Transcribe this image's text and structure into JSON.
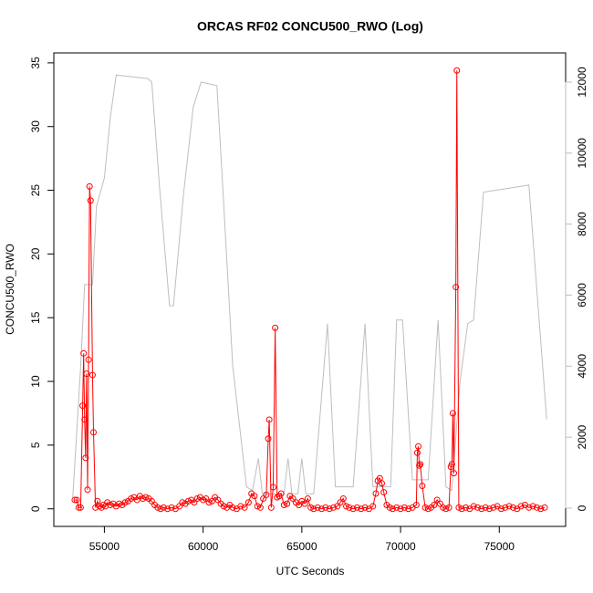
{
  "chart_data": {
    "type": "line",
    "title": "ORCAS RF02 CONCU500_RWO (Log)",
    "xlabel": "UTC Seconds",
    "ylabel": "CONCU500_RWO",
    "xlim": [
      52440,
      78360
    ],
    "ylim": [
      -1.38,
      35.78
    ],
    "y2lim": [
      -514,
      12822
    ],
    "xticks": [
      55000,
      60000,
      65000,
      70000,
      75000
    ],
    "yticks": [
      0,
      5,
      10,
      15,
      20,
      25,
      30,
      35
    ],
    "y2ticks": [
      0,
      2000,
      4000,
      6000,
      8000,
      10000,
      12000
    ],
    "y2color": "#bebebe",
    "series": [
      {
        "color": "#bebebe",
        "axis": "y2",
        "markers": false,
        "x": [
          53400,
          53800,
          54000,
          54400,
          54600,
          55000,
          55300,
          55600,
          57200,
          57400,
          57800,
          58300,
          58500,
          59000,
          59500,
          59900,
          60700,
          61000,
          61500,
          62200,
          62500,
          62800,
          63000,
          64100,
          64300,
          64500,
          64800,
          65000,
          65200,
          65600,
          66300,
          66700,
          67600,
          68200,
          68600,
          69500,
          69800,
          70100,
          70600,
          71400,
          71900,
          72300,
          72600,
          73000,
          73400,
          73700,
          74200,
          76500,
          77400
        ],
        "values": [
          300,
          4000,
          6300,
          6300,
          8500,
          9300,
          11000,
          12200,
          12100,
          12000,
          9000,
          5700,
          5700,
          8800,
          11300,
          12000,
          11900,
          9000,
          4000,
          600,
          500,
          1400,
          400,
          400,
          1400,
          400,
          400,
          1400,
          400,
          400,
          5200,
          600,
          600,
          5200,
          600,
          600,
          5300,
          5300,
          800,
          800,
          5300,
          600,
          500,
          3500,
          5200,
          5300,
          8900,
          9100,
          2500
        ]
      },
      {
        "color": "#ff0000",
        "axis": "y",
        "markers": true,
        "x": [
          53500,
          53600,
          53700,
          53800,
          53900,
          53950,
          54000,
          54050,
          54100,
          54150,
          54200,
          54250,
          54300,
          54400,
          54450,
          54550,
          54650,
          54750,
          54850,
          54950,
          55050,
          55150,
          55300,
          55450,
          55600,
          55750,
          55900,
          56050,
          56200,
          56350,
          56500,
          56650,
          56800,
          56950,
          57100,
          57250,
          57400,
          57550,
          57700,
          57850,
          58000,
          58200,
          58400,
          58600,
          58800,
          58950,
          59100,
          59250,
          59400,
          59550,
          59700,
          59850,
          60000,
          60150,
          60300,
          60450,
          60600,
          60750,
          60900,
          61050,
          61200,
          61350,
          61500,
          61700,
          61900,
          62100,
          62300,
          62450,
          62600,
          62750,
          62900,
          63050,
          63200,
          63300,
          63350,
          63450,
          63550,
          63650,
          63750,
          63850,
          63950,
          64100,
          64250,
          64400,
          64550,
          64700,
          64850,
          65000,
          65150,
          65300,
          65450,
          65600,
          65800,
          66000,
          66200,
          66400,
          66600,
          66800,
          66950,
          67100,
          67250,
          67400,
          67600,
          67800,
          68000,
          68200,
          68400,
          68600,
          68750,
          68850,
          68950,
          69050,
          69150,
          69300,
          69450,
          69600,
          69800,
          70000,
          70200,
          70400,
          70600,
          70800,
          70850,
          70900,
          70950,
          71000,
          71100,
          71250,
          71400,
          71550,
          71700,
          71850,
          72000,
          72150,
          72300,
          72450,
          72550,
          72600,
          72650,
          72700,
          72800,
          72850,
          72950,
          73100,
          73300,
          73500,
          73700,
          73900,
          74100,
          74300,
          74500,
          74700,
          74900,
          75100,
          75300,
          75500,
          75700,
          75900,
          76100,
          76300,
          76500,
          76700,
          76900,
          77100,
          77300
        ],
        "values": [
          0.7,
          0.7,
          0.1,
          0.1,
          8.1,
          12.2,
          7,
          4,
          10.6,
          1.5,
          11.7,
          25.3,
          24.2,
          10.5,
          6,
          0.1,
          0.6,
          0.2,
          0.1,
          0.3,
          0.2,
          0.5,
          0.3,
          0.4,
          0.2,
          0.4,
          0.3,
          0.5,
          0.6,
          0.8,
          0.9,
          0.7,
          1,
          0.8,
          0.9,
          0.8,
          0.6,
          0.3,
          0.1,
          0,
          0.1,
          0,
          0.1,
          0,
          0.2,
          0.5,
          0.4,
          0.6,
          0.7,
          0.5,
          0.8,
          0.9,
          0.7,
          0.8,
          0.5,
          0.6,
          0.9,
          0.7,
          0.4,
          0.2,
          0.1,
          0.3,
          0.1,
          0,
          0.2,
          0.1,
          0.5,
          1.2,
          1.0,
          0.2,
          0.1,
          0.8,
          1.1,
          5.5,
          7,
          0.1,
          1.7,
          14.2,
          0.9,
          1,
          1.2,
          0.3,
          0.4,
          1,
          0.8,
          0.5,
          0.3,
          0.6,
          0.4,
          0.8,
          0.1,
          0,
          0.1,
          0,
          0.1,
          0,
          0.1,
          0.2,
          0.5,
          0.8,
          0.2,
          0.1,
          0,
          0.1,
          0,
          0.1,
          0,
          0.2,
          1.2,
          2.2,
          2.4,
          2,
          1.3,
          0.3,
          0.1,
          0,
          0.1,
          0,
          0.1,
          0,
          0.1,
          0.3,
          4.4,
          4.9,
          3.4,
          3.5,
          1.8,
          0.1,
          0,
          0.1,
          0.3,
          0.7,
          0.4,
          0.1,
          0,
          0.1,
          3.3,
          3.5,
          7.5,
          2.8,
          17.4,
          34.4,
          0.1,
          0,
          0.1,
          0,
          0.2,
          0.1,
          0,
          0.1,
          0,
          0.1,
          0.2,
          0,
          0.1,
          0.2,
          0.1,
          0,
          0.2,
          0.3,
          0.1,
          0.2,
          0.1,
          0,
          0.1
        ]
      }
    ]
  }
}
